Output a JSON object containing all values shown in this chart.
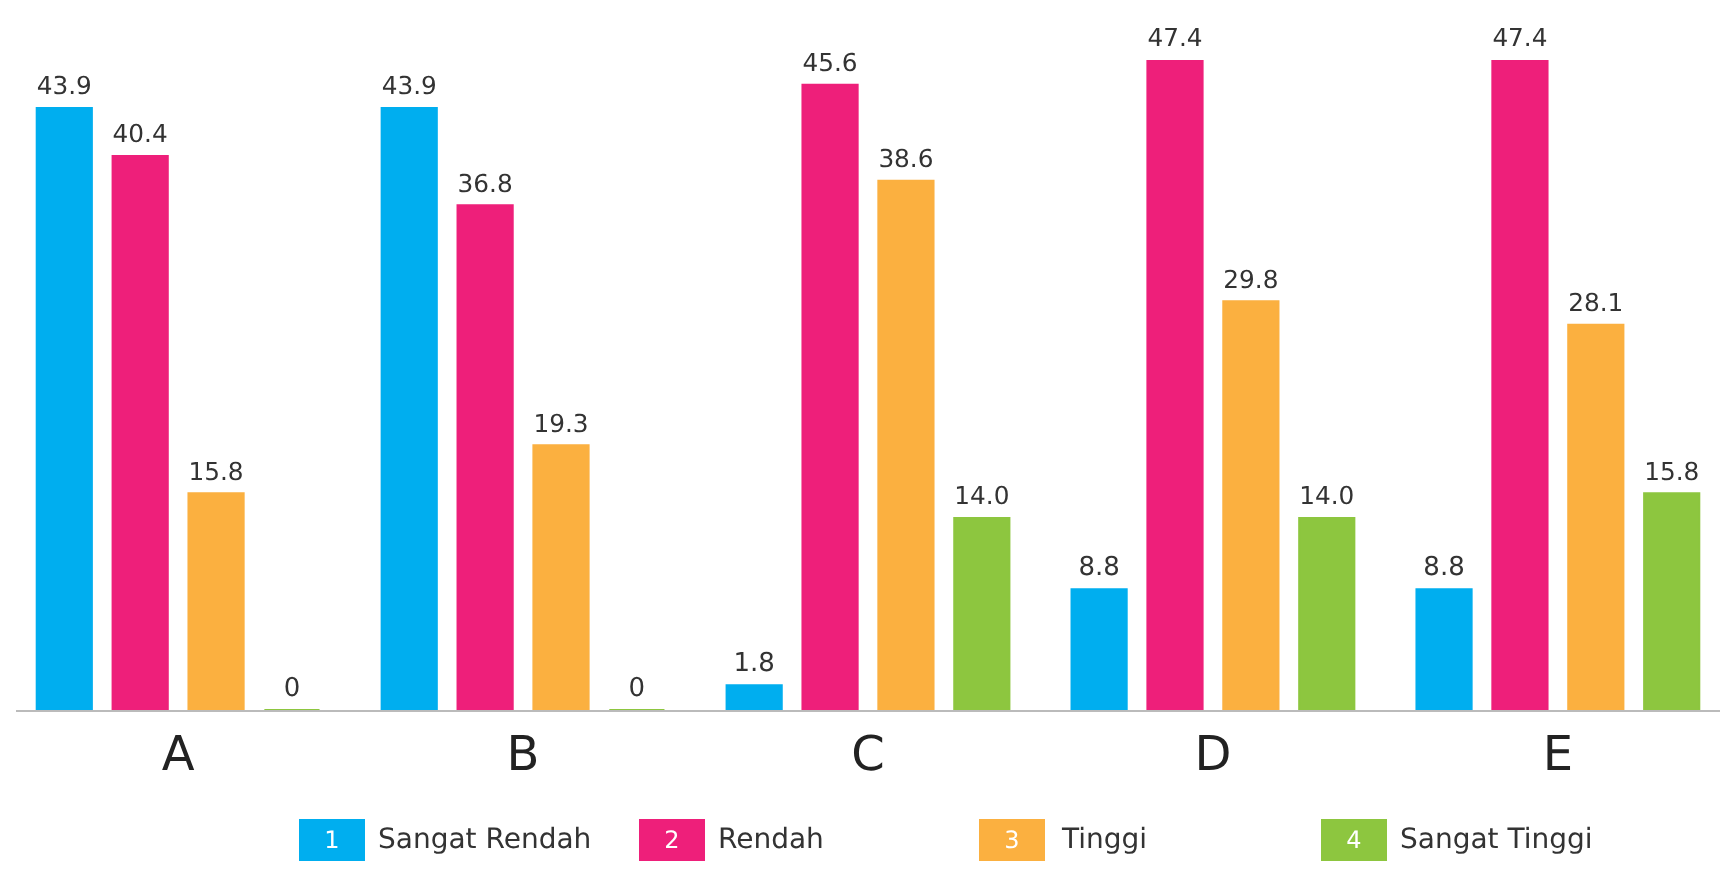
{
  "chart_data": {
    "type": "bar",
    "categories": [
      "A",
      "B",
      "C",
      "D",
      "E"
    ],
    "series": [
      {
        "name": "Sangat Rendah",
        "color": "#00aeef",
        "values": [
          43.9,
          43.9,
          1.8,
          8.8,
          8.8
        ],
        "value_labels": [
          "43.9",
          "43.9",
          "1.8",
          "8.8",
          "8.8"
        ]
      },
      {
        "name": "Rendah",
        "color": "#ee1f7a",
        "values": [
          40.4,
          36.8,
          45.6,
          47.4,
          47.4
        ],
        "value_labels": [
          "40.4",
          "36.8",
          "45.6",
          "47.4",
          "47.4"
        ]
      },
      {
        "name": "Tinggi",
        "color": "#fbb040",
        "values": [
          15.8,
          19.3,
          38.6,
          29.8,
          28.1
        ],
        "value_labels": [
          "15.8",
          "19.3",
          "38.6",
          "29.8",
          "28.1"
        ]
      },
      {
        "name": "Sangat Tinggi",
        "color": "#8dc63f",
        "values": [
          0,
          0,
          14.0,
          14.0,
          15.8
        ],
        "value_labels": [
          "0",
          "0",
          "14.0",
          "14.0",
          "15.8"
        ]
      }
    ],
    "annotations": [
      "1",
      "2",
      "3",
      "4"
    ],
    "legend": "bottom"
  }
}
